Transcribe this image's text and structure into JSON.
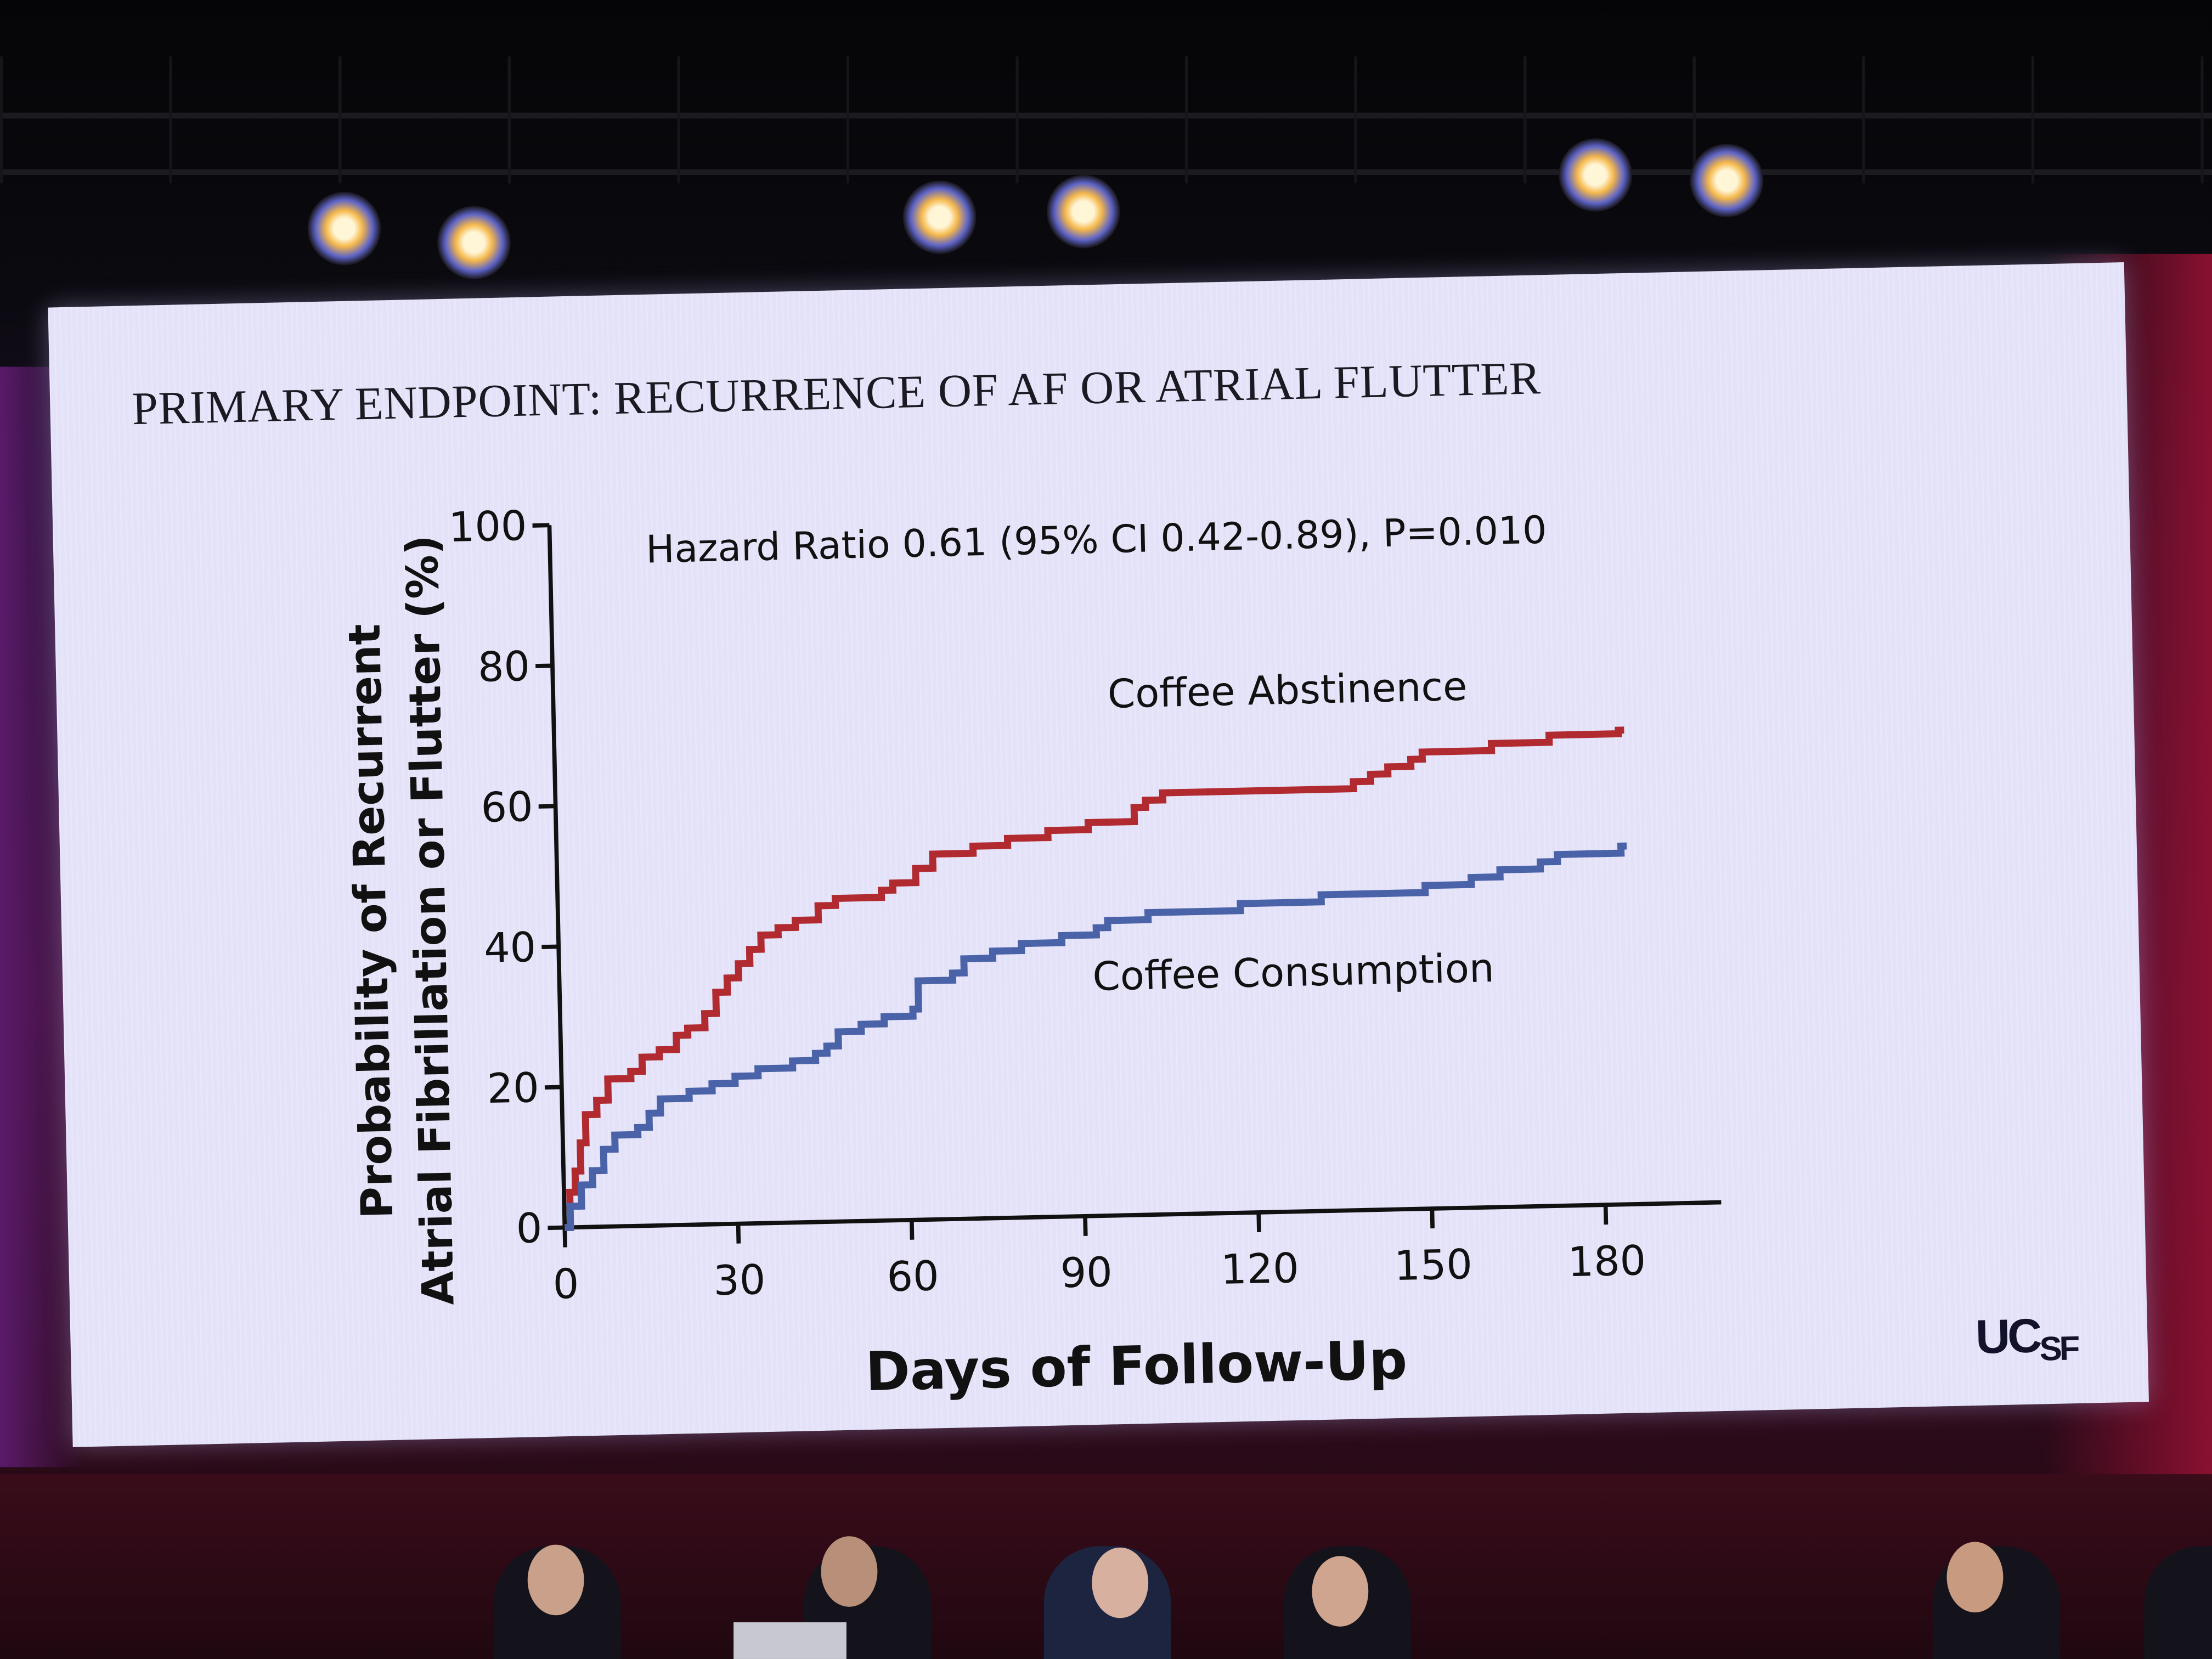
{
  "slide": {
    "title": "PRIMARY ENDPOINT: RECURRENCE OF AF OR ATRIAL FLUTTER",
    "logo": "UCSF"
  },
  "chart_data": {
    "type": "line",
    "step": true,
    "title": "PRIMARY ENDPOINT: RECURRENCE OF AF OR ATRIAL FLUTTER",
    "annotation": "Hazard Ratio 0.61 (95% CI 0.42-0.89), P=0.010",
    "xlabel": "Days of Follow-Up",
    "ylabel_line1": "Probability of Recurrent",
    "ylabel_line2": "Atrial Fibrillation or Flutter (%)",
    "xlim": [
      0,
      200
    ],
    "ylim": [
      0,
      100
    ],
    "xticks": [
      0,
      30,
      60,
      90,
      120,
      150,
      180
    ],
    "yticks": [
      0,
      20,
      40,
      60,
      80,
      100
    ],
    "grid": false,
    "series": [
      {
        "name": "Coffee Abstinence",
        "color": "#b02a30",
        "x": [
          0,
          1,
          2,
          3,
          4,
          6,
          8,
          12,
          14,
          17,
          20,
          22,
          25,
          27,
          29,
          31,
          33,
          35,
          38,
          41,
          45,
          48,
          56,
          58,
          62,
          65,
          72,
          78,
          85,
          92,
          100,
          102,
          105,
          138,
          141,
          144,
          148,
          150,
          162,
          172,
          184
        ],
        "y": [
          0,
          5,
          8,
          12,
          16,
          18,
          21,
          22,
          24,
          25,
          27,
          28,
          30,
          33,
          35,
          37,
          39,
          41,
          42,
          43,
          45,
          46,
          47,
          48,
          50,
          52,
          53,
          54,
          55,
          56,
          58,
          59,
          60,
          61,
          62,
          63,
          64,
          65,
          66,
          67,
          67.5
        ]
      },
      {
        "name": "Coffee Consumption",
        "color": "#4a62a8",
        "x": [
          0,
          1,
          3,
          5,
          7,
          9,
          13,
          15,
          17,
          22,
          26,
          30,
          34,
          40,
          44,
          46,
          48,
          52,
          56,
          61,
          62,
          68,
          70,
          75,
          80,
          87,
          93,
          95,
          102,
          118,
          132,
          150,
          158,
          163,
          170,
          173,
          184
        ],
        "y": [
          0,
          3,
          6,
          8,
          11,
          13,
          14,
          16,
          18,
          19,
          20,
          21,
          22,
          23,
          24,
          25,
          27,
          28,
          29,
          30,
          34,
          35,
          37,
          38,
          39,
          40,
          41,
          42,
          43,
          44,
          45,
          46,
          47,
          48,
          49,
          50,
          51
        ]
      }
    ]
  }
}
